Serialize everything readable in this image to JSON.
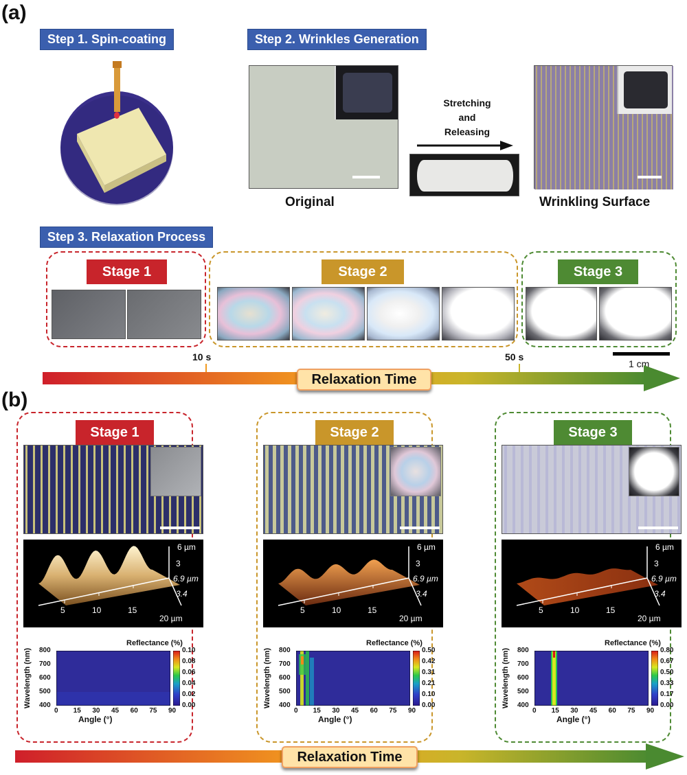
{
  "panel_a": {
    "label": "(a)",
    "step1": {
      "title": "Step 1. Spin-coating"
    },
    "step2": {
      "title": "Step 2. Wrinkles Generation",
      "original_label": "Original",
      "arrow_label_line1": "Stretching",
      "arrow_label_line2": "and",
      "arrow_label_line3": "Releasing",
      "wrinkling_label": "Wrinkling Surface"
    },
    "step3": {
      "title": "Step 3. Relaxation Process",
      "stage1": "Stage 1",
      "stage2": "Stage 2",
      "stage3": "Stage 3",
      "time_10": "10 s",
      "time_50": "50 s",
      "scale_label": "1 cm",
      "timeline_label": "Relaxation Time"
    }
  },
  "panel_b": {
    "label": "(b)",
    "stages": [
      {
        "title": "Stage 1",
        "color": "#c8242b",
        "afm": {
          "z_top": "6 µm",
          "z_mid": "3",
          "y_top": "6.9 µm",
          "y_bot": "3.4",
          "x1": "5",
          "x2": "10",
          "x3": "15",
          "x4": "20 µm"
        },
        "heatmap": {
          "title": "Reflectance (%)",
          "ylabel": "Wavelength (nm)",
          "xlabel": "Angle (°)",
          "yticks": [
            "800",
            "700",
            "600",
            "500",
            "400"
          ],
          "xticks": [
            "0",
            "15",
            "30",
            "45",
            "60",
            "75",
            "90"
          ],
          "cbar": [
            "0.10",
            "0.08",
            "0.06",
            "0.04",
            "0.02",
            "0.00"
          ]
        }
      },
      {
        "title": "Stage 2",
        "color": "#c9962a",
        "afm": {
          "z_top": "6 µm",
          "z_mid": "3",
          "y_top": "6.9 µm",
          "y_bot": "3.4",
          "x1": "5",
          "x2": "10",
          "x3": "15",
          "x4": "20 µm"
        },
        "heatmap": {
          "title": "Reflectance (%)",
          "ylabel": "Wavelength (nm)",
          "xlabel": "Angle (°)",
          "yticks": [
            "800",
            "700",
            "600",
            "500",
            "400"
          ],
          "xticks": [
            "0",
            "15",
            "30",
            "45",
            "60",
            "75",
            "90"
          ],
          "cbar": [
            "0.50",
            "0.42",
            "0.31",
            "0.21",
            "0.10",
            "0.00"
          ]
        }
      },
      {
        "title": "Stage 3",
        "color": "#4e8a33",
        "afm": {
          "z_top": "6 µm",
          "z_mid": "3",
          "y_top": "6.9 µm",
          "y_bot": "3.4",
          "x1": "5",
          "x2": "10",
          "x3": "15",
          "x4": "20 µm"
        },
        "heatmap": {
          "title": "Reflectance (%)",
          "ylabel": "Wavelength (nm)",
          "xlabel": "Angle (°)",
          "yticks": [
            "800",
            "700",
            "600",
            "500",
            "400"
          ],
          "xticks": [
            "0",
            "15",
            "30",
            "45",
            "60",
            "75",
            "90"
          ],
          "cbar": [
            "0.80",
            "0.67",
            "0.50",
            "0.33",
            "0.17",
            "0.00"
          ]
        }
      }
    ],
    "timeline_label": "Relaxation Time"
  }
}
